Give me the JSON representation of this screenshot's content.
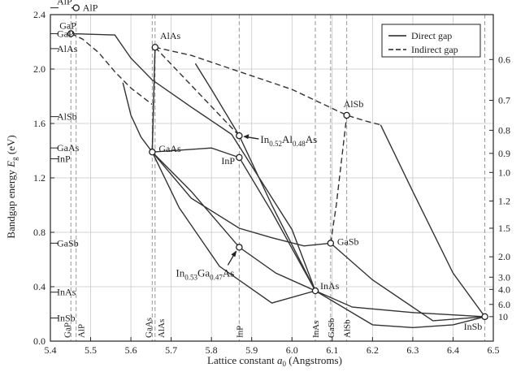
{
  "chart_data": {
    "type": "line",
    "title": "",
    "xlabel": "Lattice constant a0 (Angstroms)",
    "xlabel_parts": {
      "prefix": "Lattice constant ",
      "var": "a",
      "sub": "0",
      "suffix": " (Angstroms)"
    },
    "ylabel": "Bandgap energy Eg (eV)",
    "ylabel_parts": {
      "prefix": "Bandgap energy ",
      "var": "E",
      "sub": "g",
      "suffix": " (eV)"
    },
    "xlim": [
      5.4,
      6.5
    ],
    "ylim": [
      0.0,
      2.4
    ],
    "xticks": [
      "5.4",
      "5.5",
      "5.6",
      "5.7",
      "5.8",
      "5.9",
      "6.0",
      "6.1",
      "6.2",
      "6.3",
      "6.4",
      "6.5"
    ],
    "yticks": [
      "0.0",
      "0.4",
      "0.8",
      "1.2",
      "1.6",
      "2.0",
      "2.4"
    ],
    "right_axis_ticks": [
      {
        "label": "0.6",
        "energy": 2.07
      },
      {
        "label": "0.7",
        "energy": 1.77
      },
      {
        "label": "0.8",
        "energy": 1.55
      },
      {
        "label": "0.9",
        "energy": 1.38
      },
      {
        "label": "1.0",
        "energy": 1.24
      },
      {
        "label": "1.2",
        "energy": 1.03
      },
      {
        "label": "1.5",
        "energy": 0.83
      },
      {
        "label": "2.0",
        "energy": 0.62
      },
      {
        "label": "3.0",
        "energy": 0.47
      },
      {
        "label": "4.0",
        "energy": 0.38
      },
      {
        "label": "6.0",
        "energy": 0.27
      },
      {
        "label": "10",
        "energy": 0.18
      }
    ],
    "grid": true,
    "legend": {
      "position": "top-right",
      "entries": [
        {
          "name": "Direct gap",
          "style": "solid"
        },
        {
          "name": "Indirect gap",
          "style": "dashed"
        }
      ]
    },
    "left_axis_labels": [
      {
        "text": "AlP",
        "energy": 2.45
      },
      {
        "text": "GaP",
        "energy": 2.26
      },
      {
        "text": "AlAs",
        "energy": 2.15
      },
      {
        "text": "AlSb",
        "energy": 1.65
      },
      {
        "text": "GaAs",
        "energy": 1.42
      },
      {
        "text": "InP",
        "energy": 1.34
      },
      {
        "text": "GaSb",
        "energy": 0.72
      },
      {
        "text": "InAs",
        "energy": 0.36
      },
      {
        "text": "InSb",
        "energy": 0.17
      }
    ],
    "bottom_axis_labels": [
      {
        "text": "GaP",
        "x": 5.451
      },
      {
        "text": "AlP",
        "x": 5.464
      },
      {
        "text": "GaAs",
        "x": 5.653
      },
      {
        "text": "AlAs",
        "x": 5.66
      },
      {
        "text": "InP",
        "x": 5.869
      },
      {
        "text": "InAs",
        "x": 6.058
      },
      {
        "text": "GaSb",
        "x": 6.096
      },
      {
        "text": "AlSb",
        "x": 6.136
      }
    ],
    "reference_lines_x": [
      5.451,
      5.464,
      5.653,
      5.66,
      5.869,
      6.058,
      6.096,
      6.136,
      6.479
    ],
    "points": [
      {
        "name": "AlP",
        "x": 5.464,
        "y": 2.45,
        "label": "AlP"
      },
      {
        "name": "GaP",
        "x": 5.451,
        "y": 2.26,
        "label": "GaP"
      },
      {
        "name": "AlAs",
        "x": 5.66,
        "y": 2.16,
        "label": "AlAs"
      },
      {
        "name": "GaAs",
        "x": 5.653,
        "y": 1.39,
        "label": "GaAs"
      },
      {
        "name": "InP",
        "x": 5.869,
        "y": 1.35,
        "label": "InP"
      },
      {
        "name": "AlSb",
        "x": 6.136,
        "y": 1.66,
        "label": "AlSb"
      },
      {
        "name": "GaSb",
        "x": 6.096,
        "y": 0.72,
        "label": "GaSb"
      },
      {
        "name": "InAs",
        "x": 6.058,
        "y": 0.37,
        "label": "InAs"
      },
      {
        "name": "InSb",
        "x": 6.479,
        "y": 0.18,
        "label": "InSb"
      },
      {
        "name": "InAlAs",
        "x": 5.869,
        "y": 1.51
      },
      {
        "name": "InGaAs",
        "x": 5.869,
        "y": 0.69
      }
    ],
    "annotations": [
      {
        "name": "InAlAs",
        "base": "In",
        "s1": "0.52",
        "mid": "Al",
        "s2": "0.48",
        "tail": "As"
      },
      {
        "name": "InGaAs",
        "base": "In",
        "s1": "0.53",
        "mid": "Ga",
        "s2": "0.47",
        "tail": "As"
      }
    ],
    "series": [
      {
        "style": "dashed",
        "points": [
          [
            5.451,
            2.26
          ],
          [
            5.48,
            2.22
          ],
          [
            5.52,
            2.12
          ],
          [
            5.56,
            1.98
          ],
          [
            5.6,
            1.86
          ],
          [
            5.653,
            1.74
          ]
        ]
      },
      {
        "style": "solid",
        "points": [
          [
            5.451,
            2.26
          ],
          [
            5.56,
            2.25
          ],
          [
            5.6,
            2.08
          ],
          [
            5.653,
            1.92
          ],
          [
            5.75,
            1.72
          ],
          [
            5.85,
            1.52
          ],
          [
            6.0,
            0.82
          ],
          [
            6.058,
            0.37
          ]
        ]
      },
      {
        "style": "solid",
        "points": [
          [
            5.58,
            1.9
          ],
          [
            5.6,
            1.66
          ],
          [
            5.625,
            1.5
          ],
          [
            5.653,
            1.39
          ]
        ]
      },
      {
        "style": "dashed",
        "points": [
          [
            5.66,
            2.16
          ],
          [
            5.75,
            2.1
          ],
          [
            5.85,
            2.0
          ],
          [
            6.0,
            1.85
          ],
          [
            6.136,
            1.66
          ],
          [
            6.18,
            1.62
          ],
          [
            6.22,
            1.59
          ]
        ]
      },
      {
        "style": "solid",
        "points": [
          [
            6.22,
            1.59
          ],
          [
            6.3,
            1.1
          ],
          [
            6.4,
            0.5
          ],
          [
            6.479,
            0.18
          ]
        ]
      },
      {
        "style": "dashed",
        "points": [
          [
            5.66,
            2.16
          ],
          [
            5.869,
            1.51
          ]
        ]
      },
      {
        "style": "solid",
        "points": [
          [
            5.653,
            1.39
          ],
          [
            5.66,
            2.16
          ]
        ]
      },
      {
        "style": "dashed",
        "points": [
          [
            6.096,
            0.72
          ],
          [
            6.11,
            1.0
          ],
          [
            6.136,
            1.66
          ]
        ]
      },
      {
        "style": "dashed",
        "points": [
          [
            5.66,
            2.16
          ],
          [
            5.653,
            1.39
          ]
        ]
      },
      {
        "style": "solid",
        "points": [
          [
            5.653,
            1.39
          ],
          [
            5.75,
            1.1
          ],
          [
            5.869,
            0.69
          ],
          [
            5.96,
            0.5
          ],
          [
            6.058,
            0.37
          ]
        ]
      },
      {
        "style": "solid",
        "points": [
          [
            5.653,
            1.39
          ],
          [
            5.75,
            1.05
          ],
          [
            5.869,
            0.83
          ],
          [
            5.95,
            0.76
          ],
          [
            6.03,
            0.7
          ],
          [
            6.096,
            0.72
          ]
        ]
      },
      {
        "style": "solid",
        "points": [
          [
            5.653,
            1.39
          ],
          [
            5.72,
            0.98
          ],
          [
            5.82,
            0.55
          ],
          [
            5.95,
            0.28
          ],
          [
            6.058,
            0.37
          ]
        ]
      },
      {
        "style": "solid",
        "points": [
          [
            5.653,
            1.39
          ],
          [
            5.8,
            1.42
          ],
          [
            5.869,
            1.35
          ],
          [
            5.95,
            0.95
          ],
          [
            6.058,
            0.37
          ]
        ]
      },
      {
        "style": "solid",
        "points": [
          [
            5.76,
            2.04
          ],
          [
            5.8,
            1.85
          ],
          [
            5.869,
            1.51
          ],
          [
            5.95,
            1.0
          ],
          [
            6.058,
            0.37
          ]
        ]
      },
      {
        "style": "solid",
        "points": [
          [
            6.058,
            0.37
          ],
          [
            6.15,
            0.25
          ],
          [
            6.3,
            0.21
          ],
          [
            6.479,
            0.18
          ]
        ]
      },
      {
        "style": "solid",
        "points": [
          [
            6.096,
            0.72
          ],
          [
            6.2,
            0.45
          ],
          [
            6.35,
            0.15
          ],
          [
            6.479,
            0.18
          ]
        ]
      },
      {
        "style": "solid",
        "points": [
          [
            6.058,
            0.37
          ],
          [
            6.2,
            0.12
          ],
          [
            6.3,
            0.1
          ],
          [
            6.4,
            0.12
          ],
          [
            6.479,
            0.18
          ]
        ]
      }
    ]
  }
}
